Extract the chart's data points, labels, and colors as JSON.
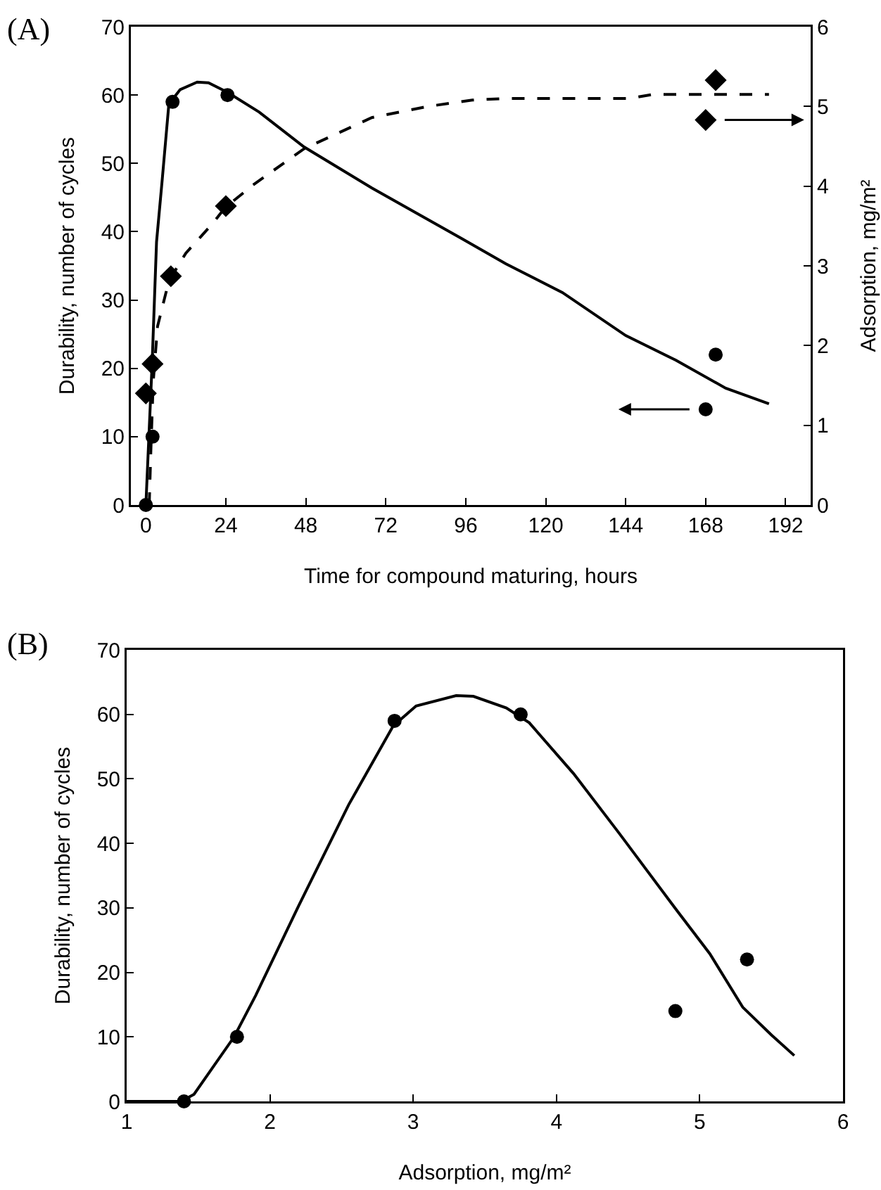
{
  "chart_data": [
    {
      "type": "scatter",
      "title": "(A)",
      "xlabel": "Time for compound maturing, hours",
      "ylabel": "Durability, number of cycles",
      "y2label": "Adsorption, mg/m²",
      "xlim": [
        -4.5,
        199.5
      ],
      "xticks": [
        0,
        24,
        48,
        72,
        96,
        120,
        144,
        168,
        192
      ],
      "ylim": [
        0,
        70
      ],
      "yticks": [
        0,
        10,
        20,
        30,
        40,
        50,
        60,
        70
      ],
      "y2lim": [
        0,
        6
      ],
      "y2ticks": [
        0,
        1,
        2,
        3,
        4,
        5,
        6
      ],
      "series": [
        {
          "type": "line",
          "color": "#000000",
          "line_style": "solid",
          "marker": "none",
          "x": [
            0,
            1.9,
            3.2,
            4.9,
            6.9,
            10.3,
            15.4,
            18.8,
            24.5,
            34,
            47.5,
            67.8,
            94.8,
            108,
            125,
            144,
            159,
            174,
            187
          ],
          "values": [
            0,
            21,
            38.5,
            47.6,
            58.7,
            60.8,
            61.9,
            61.8,
            60.4,
            57.5,
            52.4,
            46.4,
            39,
            35.3,
            31.1,
            24.8,
            21.2,
            17.1,
            14.8
          ]
        },
        {
          "type": "line",
          "axis": "y2",
          "color": "#000000",
          "line_style": "dashed",
          "marker": "none",
          "x": [
            1,
            1.5,
            2.2,
            3.5,
            6.9,
            12,
            19.6,
            23.8,
            32,
            47.5,
            67.8,
            84.6,
            98,
            108,
            145,
            152,
            187
          ],
          "values": [
            0,
            0.69,
            1.54,
            2.24,
            2.81,
            3.16,
            3.51,
            3.73,
            4.01,
            4.47,
            4.86,
            5,
            5.08,
            5.1,
            5.1,
            5.15,
            5.15
          ]
        },
        {
          "type": "scatter",
          "color": "#000000",
          "marker": "circle",
          "x": [
            0,
            2,
            8,
            24.5,
            168,
            171
          ],
          "values": [
            0,
            10,
            59,
            60,
            14,
            22
          ]
        },
        {
          "type": "scatter",
          "axis": "y2",
          "color": "#000000",
          "marker": "diamond",
          "x": [
            0,
            2,
            7.5,
            24,
            168,
            171
          ],
          "values": [
            1.4,
            1.77,
            2.87,
            3.75,
            4.83,
            5.33
          ]
        }
      ]
    },
    {
      "type": "scatter",
      "title": "(B)",
      "xlabel": "Adsorption, mg/m²",
      "ylabel": "Durability, number of cycles",
      "xlim": [
        1,
        6
      ],
      "xticks": [
        1,
        2,
        3,
        4,
        5,
        6
      ],
      "ylim": [
        0,
        70
      ],
      "yticks": [
        0,
        10,
        20,
        30,
        40,
        50,
        60,
        70
      ],
      "series": [
        {
          "type": "line",
          "color": "#000000",
          "line_style": "solid",
          "marker": "none",
          "x": [
            1,
            1.25,
            1.38,
            1.47,
            1.75,
            1.9,
            2.2,
            2.55,
            2.86,
            3.02,
            3.3,
            3.42,
            3.65,
            3.81,
            4.12,
            4.44,
            4.83,
            5.07,
            5.3,
            5.5,
            5.66
          ],
          "values": [
            0,
            0,
            0,
            1.1,
            10,
            16.4,
            30.3,
            46,
            58.2,
            61.3,
            62.9,
            62.8,
            61,
            58.7,
            50.8,
            41.5,
            29.9,
            22.9,
            14.6,
            10.3,
            7.1
          ]
        },
        {
          "type": "scatter",
          "color": "#000000",
          "marker": "circle",
          "x": [
            1.4,
            1.77,
            2.87,
            3.75,
            4.83,
            5.33
          ],
          "values": [
            0,
            10,
            59,
            60,
            14,
            22
          ]
        }
      ]
    }
  ]
}
